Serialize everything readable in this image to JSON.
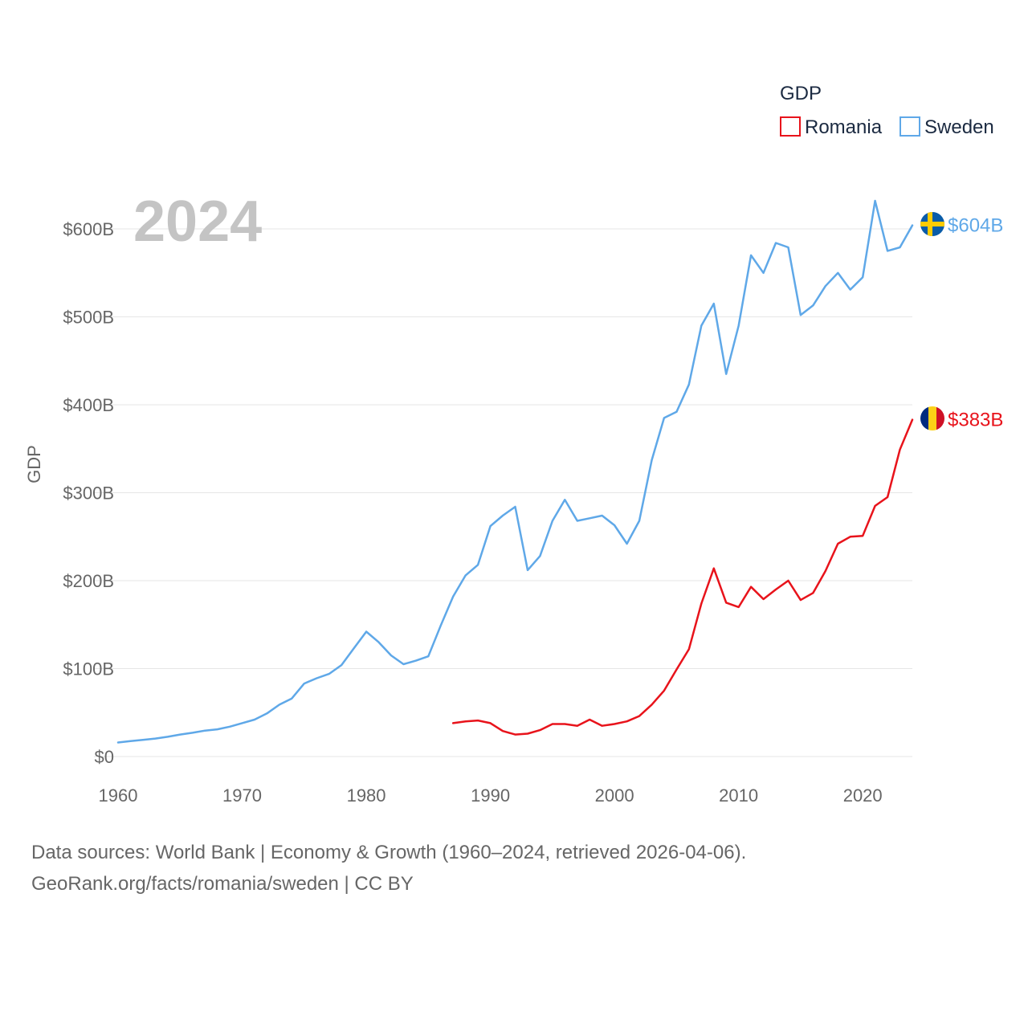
{
  "chart_data": {
    "type": "line",
    "legend_title": "GDP",
    "year_label": "2024",
    "ylabel": "GDP",
    "xlabel": "",
    "xlim": [
      1960,
      2024
    ],
    "ylim": [
      0,
      600
    ],
    "x_ticks": [
      1960,
      1970,
      1980,
      1990,
      2000,
      2010,
      2020
    ],
    "x_tick_labels": [
      "1960",
      "1970",
      "1980",
      "1990",
      "2000",
      "2010",
      "2020"
    ],
    "y_ticks": [
      0,
      100,
      200,
      300,
      400,
      500,
      600
    ],
    "y_tick_labels": [
      "$0",
      "$100B",
      "$200B",
      "$300B",
      "$400B",
      "$500B",
      "$600B"
    ],
    "grid": true,
    "legend_position": "top-right",
    "units": "billions of US dollars",
    "series": [
      {
        "name": "Romania",
        "color": "#e8131b",
        "end_label": "$383B",
        "flag": "romania-flag",
        "x": [
          1987,
          1988,
          1989,
          1990,
          1991,
          1992,
          1993,
          1994,
          1995,
          1996,
          1997,
          1998,
          1999,
          2000,
          2001,
          2002,
          2003,
          2004,
          2005,
          2006,
          2007,
          2008,
          2009,
          2010,
          2011,
          2012,
          2013,
          2014,
          2015,
          2016,
          2017,
          2018,
          2019,
          2020,
          2021,
          2022,
          2023,
          2024
        ],
        "values": [
          38,
          40,
          41,
          38,
          29,
          25,
          26,
          30,
          37,
          37,
          35,
          42,
          35,
          37,
          40,
          46,
          59,
          75,
          99,
          122,
          174,
          214,
          175,
          170,
          193,
          179,
          190,
          200,
          178,
          186,
          211,
          242,
          250,
          251,
          285,
          295,
          349,
          383
        ]
      },
      {
        "name": "Sweden",
        "color": "#5fa8e8",
        "end_label": "$604B",
        "flag": "sweden-flag",
        "x": [
          1960,
          1961,
          1962,
          1963,
          1964,
          1965,
          1966,
          1967,
          1968,
          1969,
          1970,
          1971,
          1972,
          1973,
          1974,
          1975,
          1976,
          1977,
          1978,
          1979,
          1980,
          1981,
          1982,
          1983,
          1984,
          1985,
          1986,
          1987,
          1988,
          1989,
          1990,
          1991,
          1992,
          1993,
          1994,
          1995,
          1996,
          1997,
          1998,
          1999,
          2000,
          2001,
          2002,
          2003,
          2004,
          2005,
          2006,
          2007,
          2008,
          2009,
          2010,
          2011,
          2012,
          2013,
          2014,
          2015,
          2016,
          2017,
          2018,
          2019,
          2020,
          2021,
          2022,
          2023,
          2024
        ],
        "values": [
          16,
          17.5,
          19,
          20.5,
          22.5,
          25,
          27,
          29.5,
          31,
          34,
          38,
          42,
          49,
          59,
          66,
          83,
          89,
          94,
          104,
          123,
          142,
          130,
          115,
          105,
          109,
          114,
          149,
          182,
          206,
          218,
          262,
          274,
          284,
          212,
          228,
          268,
          292,
          268,
          271,
          274,
          263,
          242,
          268,
          337,
          385,
          392,
          423,
          490,
          515,
          435,
          490,
          570,
          550,
          584,
          579,
          502,
          513,
          535,
          550,
          531,
          545,
          632,
          575,
          579,
          604
        ]
      }
    ]
  },
  "source": {
    "line1": "Data sources: World Bank | Economy & Growth (1960–2024, retrieved 2026-04-06).",
    "line2": "GeoRank.org/facts/romania/sweden | CC BY"
  }
}
